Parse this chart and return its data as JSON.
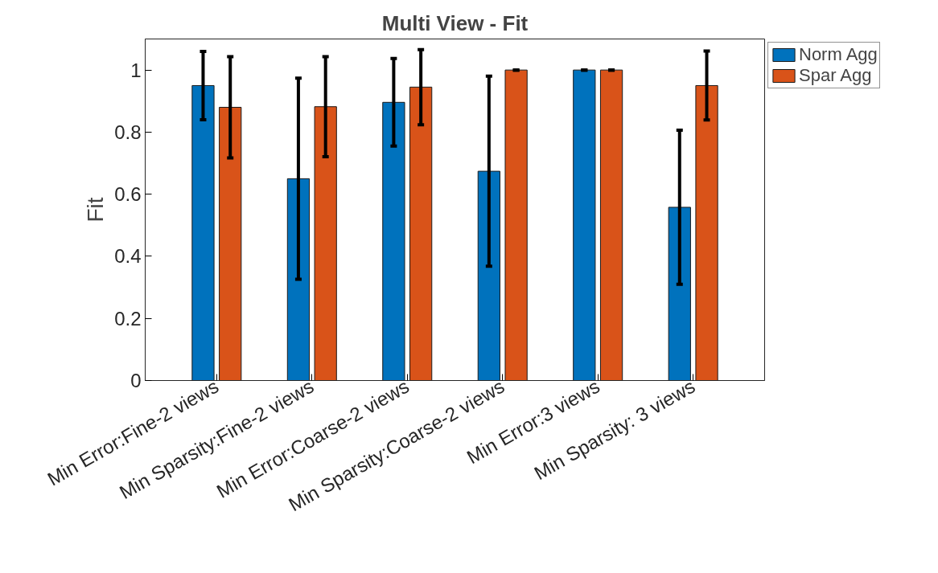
{
  "chart_data": {
    "type": "bar",
    "title": "Multi View - Fit",
    "ylabel": "Fit",
    "categories": [
      "Min Error:Fine-2 views",
      "Min Sparsity:Fine-2 views",
      "Min Error:Coarse-2 views",
      "Min Sparsity:Coarse-2 views",
      "Min Error:3 views",
      "Min Sparsity: 3 views"
    ],
    "series": [
      {
        "name": "Norm Agg",
        "color": "#0072bd",
        "values": [
          0.95,
          0.65,
          0.896,
          0.674,
          1.0,
          0.558
        ],
        "errors": [
          0.11,
          0.324,
          0.141,
          0.306,
          0.0,
          0.248
        ]
      },
      {
        "name": "Spar Agg",
        "color": "#d95319",
        "values": [
          0.88,
          0.882,
          0.945,
          1.0,
          1.0,
          0.95
        ],
        "errors": [
          0.163,
          0.161,
          0.121,
          0.0,
          0.0,
          0.111
        ]
      }
    ],
    "ylim": [
      0,
      1.1
    ],
    "yticks": [
      0,
      0.2,
      0.4,
      0.6,
      0.8,
      1
    ],
    "grid": false,
    "legend": "top right"
  }
}
